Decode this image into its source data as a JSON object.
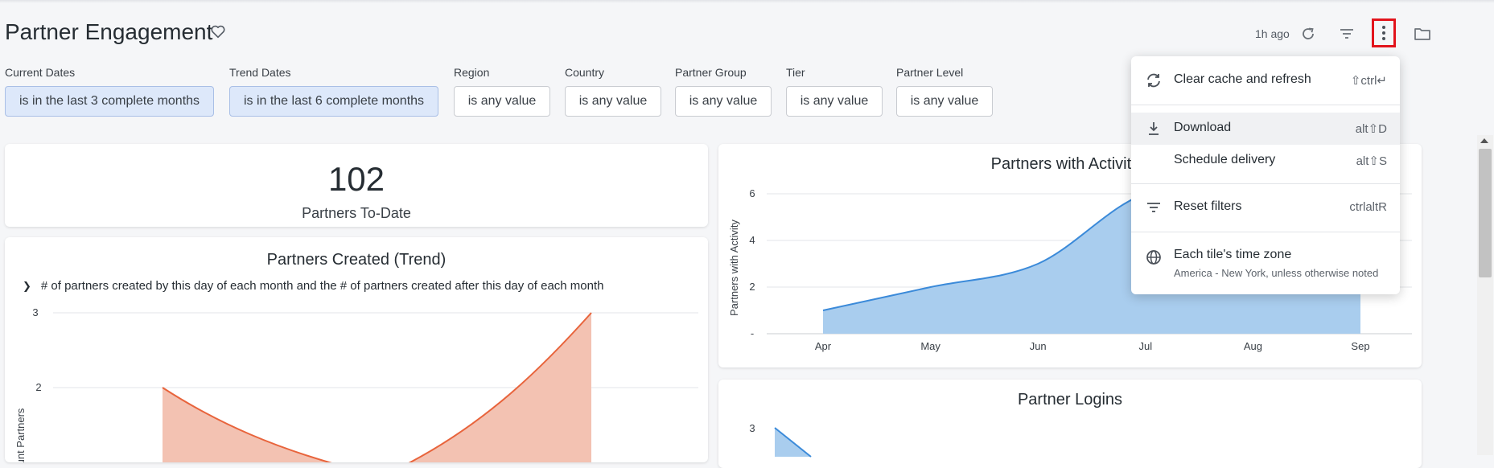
{
  "header": {
    "title": "Partner Engagement",
    "updated": "1h ago",
    "icons": [
      "heart-icon",
      "refresh-icon",
      "filter-icon",
      "more-vertical-icon",
      "folder-icon"
    ]
  },
  "filters": [
    {
      "label": "Current Dates",
      "value": "is in the last 3 complete months",
      "active": true
    },
    {
      "label": "Trend Dates",
      "value": "is in the last 6 complete months",
      "active": true
    },
    {
      "label": "Region",
      "value": "is any value",
      "active": false
    },
    {
      "label": "Country",
      "value": "is any value",
      "active": false
    },
    {
      "label": "Partner Group",
      "value": "is any value",
      "active": false
    },
    {
      "label": "Tier",
      "value": "is any value",
      "active": false
    },
    {
      "label": "Partner Level",
      "value": "is any value",
      "active": false
    }
  ],
  "tiles": {
    "partners_to_date": {
      "value": "102",
      "label": "Partners To-Date"
    },
    "partners_created": {
      "title": "Partners Created (Trend)",
      "subtitle": "# of partners created by this day of each month and the # of partners created after this day of each month",
      "ylabel": "Count Partners",
      "y_ticks": [
        "3",
        "2"
      ]
    },
    "partners_activity": {
      "title": "Partners with Activity (",
      "ylabel": "Partners with Activity",
      "y_ticks": [
        "6",
        "4",
        "2",
        "-"
      ],
      "x_ticks": [
        "Apr",
        "May",
        "Jun",
        "Jul",
        "Aug",
        "Sep"
      ]
    },
    "partner_logins": {
      "title": "Partner Logins",
      "y_ticks": [
        "3"
      ]
    }
  },
  "chart_data": [
    {
      "type": "area",
      "title": "Partners with Activity (",
      "ylabel": "Partners with Activity",
      "categories": [
        "Apr",
        "May",
        "Jun",
        "Jul",
        "Aug",
        "Sep"
      ],
      "series": [
        {
          "values": [
            1,
            2,
            3,
            6,
            6,
            5
          ]
        }
      ],
      "ylim": [
        0,
        6
      ],
      "color": "#3b8ad9",
      "grid": true
    },
    {
      "type": "area",
      "title": "Partners Created (Trend)",
      "ylabel": "Count Partners",
      "x": [
        1,
        2,
        3,
        4
      ],
      "series": [
        {
          "values": [
            2,
            1.3,
            1.8,
            3
          ]
        }
      ],
      "ylim": [
        1,
        3
      ],
      "color": "#e8643c",
      "grid": true
    }
  ],
  "menu": {
    "items": [
      {
        "label": "Clear cache and refresh",
        "shortcut": "⇧ctrl↵",
        "icon": "refresh-cache-icon"
      },
      {
        "label": "Download",
        "shortcut": "alt⇧D",
        "icon": "download-icon"
      },
      {
        "label": "Schedule delivery",
        "shortcut": "alt⇧S",
        "icon": ""
      },
      {
        "label": "Reset filters",
        "shortcut": "ctrlaltR",
        "icon": "filter-icon"
      },
      {
        "label": "Each tile's time zone",
        "sublabel": "America - New York, unless otherwise noted",
        "icon": "globe-icon"
      }
    ]
  },
  "colors": {
    "accent_blue": "#3b8ad9",
    "accent_orange": "#e8643c",
    "highlight_red": "#e2141c"
  }
}
